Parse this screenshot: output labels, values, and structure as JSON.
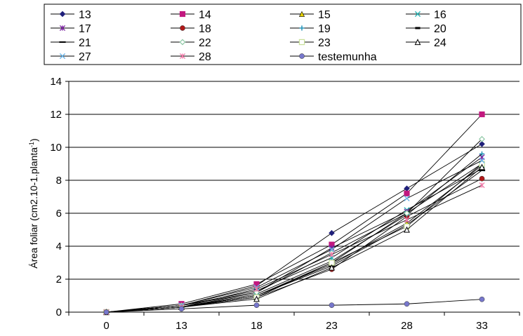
{
  "chart_data": {
    "type": "line",
    "title": "",
    "xlabel": "",
    "ylabel": "Área foliar (cm2.10-1.planta",
    "ylabel_sup": "-1",
    "ylabel_end": ")",
    "categories": [
      "0",
      "13",
      "18",
      "23",
      "28",
      "33"
    ],
    "ylim": [
      0,
      14
    ],
    "yticks": [
      0,
      2,
      4,
      6,
      8,
      10,
      12,
      14
    ],
    "grid": "horizontal",
    "legend_position": "top",
    "series": [
      {
        "name": "13",
        "color": "#1F1F7A",
        "marker": "diamond",
        "values": [
          0,
          0.4,
          1.6,
          4.8,
          7.5,
          10.2
        ]
      },
      {
        "name": "14",
        "color": "#C2187F",
        "marker": "square",
        "values": [
          0,
          0.5,
          1.7,
          4.1,
          7.2,
          12.0
        ]
      },
      {
        "name": "15",
        "color": "#E8D400",
        "marker": "triangle",
        "values": [
          0,
          0.3,
          1.0,
          2.9,
          5.4,
          8.9
        ]
      },
      {
        "name": "16",
        "color": "#2AB5B5",
        "marker": "x",
        "values": [
          0,
          0.4,
          1.3,
          3.3,
          6.2,
          8.7
        ]
      },
      {
        "name": "17",
        "color": "#7A1FA0",
        "marker": "star",
        "values": [
          0,
          0.3,
          1.2,
          3.9,
          6.1,
          9.4
        ]
      },
      {
        "name": "18",
        "color": "#B01818",
        "marker": "circle",
        "values": [
          0,
          0.3,
          0.9,
          2.6,
          5.8,
          8.1
        ]
      },
      {
        "name": "19",
        "color": "#1A8FB5",
        "marker": "plus",
        "values": [
          0,
          0.3,
          1.1,
          3.1,
          5.9,
          9.6
        ]
      },
      {
        "name": "20",
        "color": "#000000",
        "marker": "dash",
        "values": [
          0,
          0.3,
          1.0,
          3.0,
          6.0,
          9.0
        ]
      },
      {
        "name": "21",
        "color": "#000000",
        "marker": "hline",
        "values": [
          0,
          0.3,
          1.0,
          2.8,
          5.3,
          8.6
        ]
      },
      {
        "name": "22",
        "color": "#8FC8A6",
        "marker": "diamond-open",
        "values": [
          0,
          0.4,
          1.2,
          3.6,
          6.0,
          10.5
        ]
      },
      {
        "name": "23",
        "color": "#C8E09A",
        "marker": "square-open",
        "values": [
          0,
          0.3,
          0.9,
          3.0,
          5.2,
          9.0
        ]
      },
      {
        "name": "24",
        "color": "#F0D000",
        "marker": "triangle-open",
        "values": [
          0,
          0.3,
          0.8,
          2.7,
          5.0,
          8.8
        ]
      },
      {
        "name": "27",
        "color": "#6AB4E8",
        "marker": "x",
        "values": [
          0,
          0.4,
          1.5,
          3.8,
          6.9,
          9.2
        ]
      },
      {
        "name": "28",
        "color": "#F07AA8",
        "marker": "star",
        "values": [
          0,
          0.3,
          1.4,
          3.5,
          5.6,
          7.7
        ]
      },
      {
        "name": "testemunha",
        "color": "#7777CC",
        "marker": "circle",
        "values": [
          0,
          0.2,
          0.42,
          0.42,
          0.5,
          0.78
        ]
      }
    ]
  }
}
